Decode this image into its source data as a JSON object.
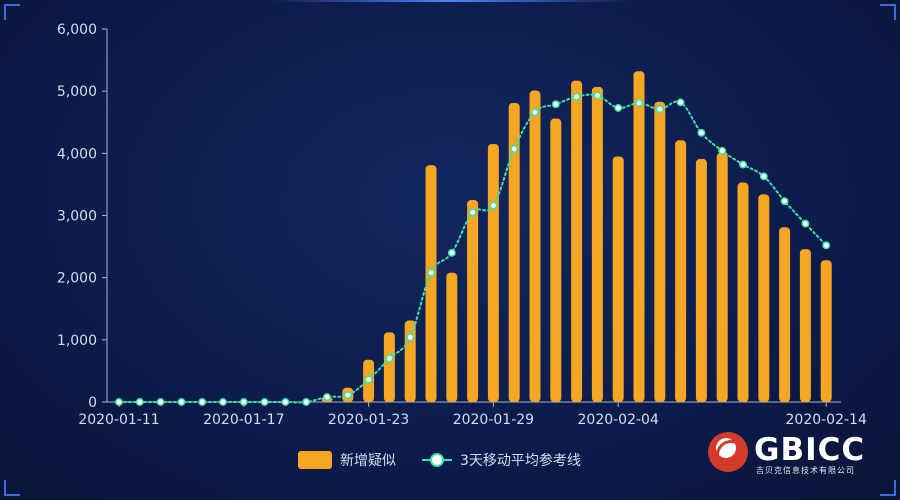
{
  "chart_data": {
    "type": "bar",
    "title": "",
    "xlabel": "",
    "ylabel": "",
    "ylim": [
      0,
      6000
    ],
    "y_ticks": [
      "0",
      "1,000",
      "2,000",
      "3,000",
      "4,000",
      "5,000",
      "6,000"
    ],
    "x_tick_labels": [
      "2020-01-11",
      "2020-01-17",
      "2020-01-23",
      "2020-01-29",
      "2020-02-04",
      "2020-02-14"
    ],
    "categories": [
      "2020-01-11",
      "2020-01-12",
      "2020-01-13",
      "2020-01-14",
      "2020-01-15",
      "2020-01-16",
      "2020-01-17",
      "2020-01-18",
      "2020-01-19",
      "2020-01-20",
      "2020-01-21",
      "2020-01-22",
      "2020-01-23",
      "2020-01-24",
      "2020-01-25",
      "2020-01-26",
      "2020-01-27",
      "2020-01-28",
      "2020-01-29",
      "2020-01-30",
      "2020-01-31",
      "2020-02-01",
      "2020-02-02",
      "2020-02-03",
      "2020-02-04",
      "2020-02-05",
      "2020-02-06",
      "2020-02-07",
      "2020-02-08",
      "2020-02-09",
      "2020-02-10",
      "2020-02-11",
      "2020-02-12",
      "2020-02-13",
      "2020-02-14"
    ],
    "series": [
      {
        "name": "新增疑似",
        "type": "bar",
        "color": "#f5a623",
        "values": [
          0,
          0,
          0,
          0,
          0,
          0,
          0,
          0,
          0,
          0,
          80,
          230,
          680,
          1120,
          1310,
          3810,
          2080,
          3250,
          4150,
          4810,
          5010,
          4560,
          5170,
          5070,
          3950,
          5320,
          4830,
          4210,
          3910,
          4010,
          3530,
          3340,
          2810,
          2460,
          2280
        ]
      },
      {
        "name": "3天移动平均参考线",
        "type": "line",
        "color": "#3ee0a8",
        "values": [
          0,
          0,
          0,
          0,
          0,
          0,
          0,
          0,
          0,
          0,
          80,
          110,
          360,
          700,
          1040,
          2080,
          2400,
          3050,
          3160,
          4070,
          4660,
          4790,
          4910,
          4930,
          4730,
          4810,
          4710,
          4820,
          4330,
          4040,
          3820,
          3630,
          3230,
          2870,
          2520
        ]
      }
    ],
    "legend_position": "bottom-center",
    "grid": false
  },
  "legend": {
    "bar_label": "新增疑似",
    "line_label": "3天移动平均参考线"
  },
  "logo": {
    "name": "GBICC",
    "subtitle": "吉贝克信息技术有限公司"
  }
}
